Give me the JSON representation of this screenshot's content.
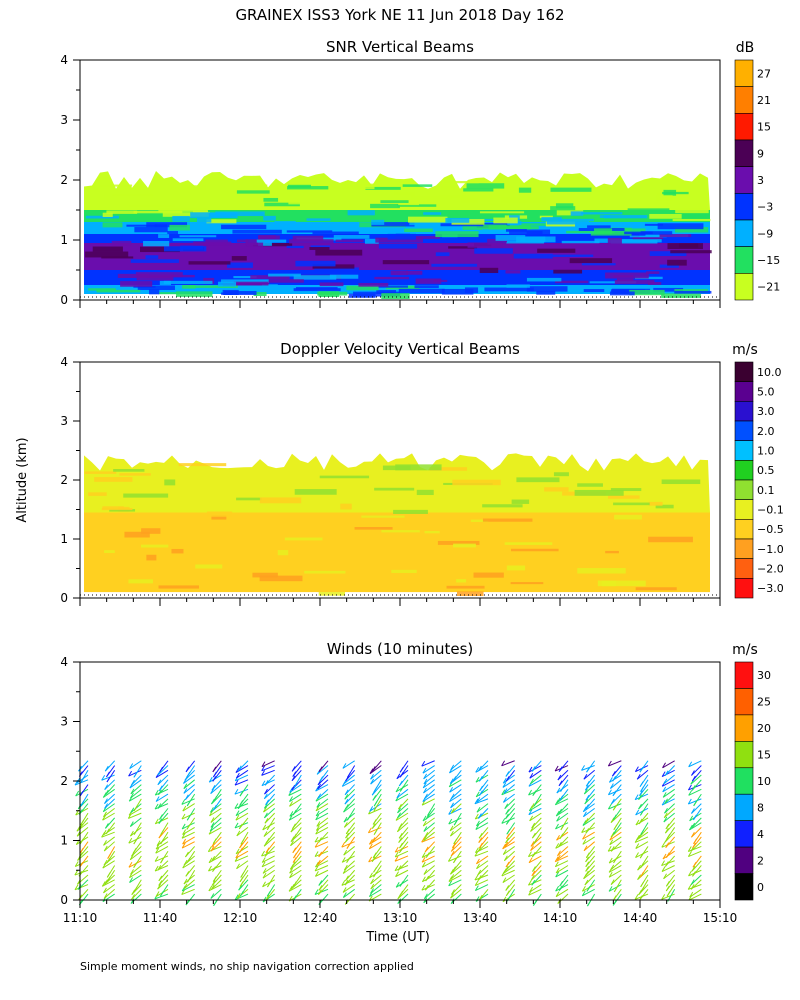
{
  "figure": {
    "title": "GRAINEX ISS3 York NE  11 Jun 2018 Day 162",
    "ylabel": "Altitude (km)",
    "xlabel": "Time (UT)",
    "footnote": "Simple moment winds, no ship navigation correction applied",
    "x_tick_labels": [
      "11:10",
      "11:40",
      "12:10",
      "12:40",
      "13:10",
      "13:40",
      "14:10",
      "14:40",
      "15:10"
    ],
    "y_tick_labels": [
      "0",
      "1",
      "2",
      "3",
      "4"
    ]
  },
  "chart_data": [
    {
      "type": "heatmap",
      "title": "SNR Vertical Beams",
      "colorbar": {
        "unit": "dB",
        "labels": [
          "27",
          "21",
          "15",
          "9",
          "3",
          "−3",
          "−9",
          "−15",
          "−21"
        ],
        "colors": [
          "#ffb000",
          "#ff7f00",
          "#ff1a00",
          "#4b0055",
          "#6a0dad",
          "#0033ff",
          "#00b0ff",
          "#22e060",
          "#c8ff20"
        ]
      },
      "x_range": [
        "11:10",
        "15:10"
      ],
      "ylim": [
        0,
        4
      ],
      "layers": [
        {
          "alt_from": 0.1,
          "alt_to": 0.25,
          "value_db": -9
        },
        {
          "alt_from": 0.25,
          "alt_to": 0.5,
          "value_db": -3
        },
        {
          "alt_from": 0.5,
          "alt_to": 0.95,
          "value_db": 3
        },
        {
          "alt_from": 0.95,
          "alt_to": 1.1,
          "value_db": -3
        },
        {
          "alt_from": 1.1,
          "alt_to": 1.3,
          "value_db": -9
        },
        {
          "alt_from": 1.3,
          "alt_to": 1.5,
          "value_db": -15
        },
        {
          "alt_from": 1.5,
          "alt_to": 2.0,
          "value_db": -21
        }
      ]
    },
    {
      "type": "heatmap",
      "title": "Doppler Velocity Vertical Beams",
      "colorbar": {
        "unit": "m/s",
        "labels": [
          "10.0",
          "5.0",
          "3.0",
          "2.0",
          "1.0",
          "0.5",
          "0.1",
          "−0.1",
          "−0.5",
          "−1.0",
          "−2.0",
          "−3.0"
        ],
        "colors": [
          "#3a0030",
          "#5a0090",
          "#2a10d0",
          "#0050ff",
          "#00c0ff",
          "#20d020",
          "#90e030",
          "#e8f020",
          "#ffd020",
          "#ffa020",
          "#ff6010",
          "#ff1010"
        ]
      },
      "x_range": [
        "11:10",
        "15:10"
      ],
      "ylim": [
        0,
        4
      ],
      "layers": [
        {
          "alt_from": 0.1,
          "alt_to": 1.45,
          "value_ms": -0.5
        },
        {
          "alt_from": 1.45,
          "alt_to": 2.3,
          "value_ms": -0.1
        }
      ]
    },
    {
      "type": "scatter",
      "title": "Winds (10 minutes)",
      "colorbar": {
        "unit": "m/s",
        "labels": [
          "30",
          "25",
          "20",
          "15",
          "10",
          "8",
          "4",
          "2",
          "0"
        ],
        "colors": [
          "#ff1010",
          "#ff6000",
          "#ffa000",
          "#90e010",
          "#20e060",
          "#00a8ff",
          "#1020ff",
          "#500080",
          "#000000"
        ]
      },
      "x_range": [
        "11:10",
        "15:10"
      ],
      "ylim": [
        0,
        4
      ],
      "profile_times": [
        "11:10",
        "11:20",
        "11:30",
        "11:40",
        "11:50",
        "12:00",
        "12:10",
        "12:20",
        "12:30",
        "12:40",
        "12:50",
        "13:00",
        "13:10",
        "13:20",
        "13:30",
        "13:40",
        "13:50",
        "14:00",
        "14:10",
        "14:20",
        "14:30",
        "14:40",
        "14:50",
        "15:00"
      ],
      "speed_profile": [
        {
          "alt_km": 0.1,
          "speed_ms": 12
        },
        {
          "alt_km": 0.5,
          "speed_ms": 15
        },
        {
          "alt_km": 1.0,
          "speed_ms": 18
        },
        {
          "alt_km": 1.5,
          "speed_ms": 12
        },
        {
          "alt_km": 2.0,
          "speed_ms": 8
        },
        {
          "alt_km": 2.4,
          "speed_ms": 4
        }
      ]
    }
  ]
}
